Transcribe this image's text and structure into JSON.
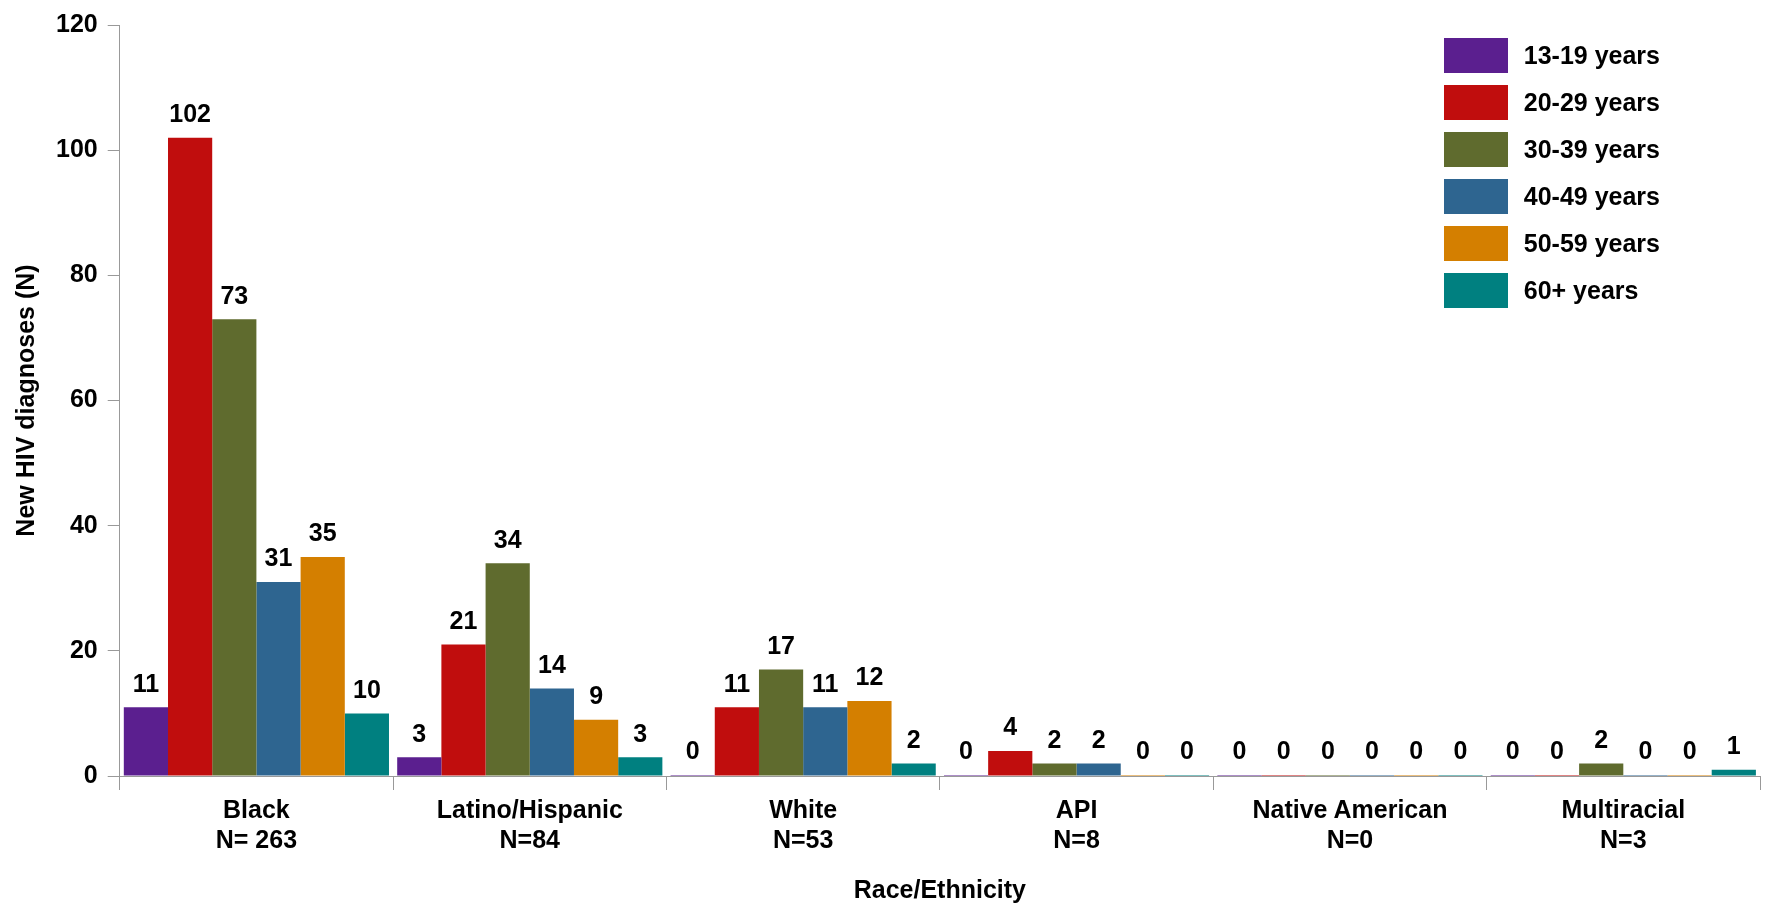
{
  "chart_data": {
    "type": "bar",
    "xlabel": "Race/Ethnicity",
    "ylabel": "New HIV diagnoses (N)",
    "categories": [
      "Black\nN= 263",
      "Latino/Hispanic\nN=84",
      "White\nN=53",
      "API\nN=8",
      "Native American\nN=0",
      "Multiracial\nN=3"
    ],
    "series": [
      {
        "name": "13-19 years",
        "color": "#5b1f8f",
        "values": [
          11,
          3,
          0,
          0,
          0,
          0
        ]
      },
      {
        "name": "20-29 years",
        "color": "#c00d0d",
        "values": [
          102,
          21,
          11,
          4,
          0,
          0
        ]
      },
      {
        "name": "30-39 years",
        "color": "#5f6b2e",
        "values": [
          73,
          34,
          17,
          2,
          0,
          2
        ]
      },
      {
        "name": "40-49 years",
        "color": "#2e6590",
        "values": [
          31,
          14,
          11,
          2,
          0,
          0
        ]
      },
      {
        "name": "50-59 years",
        "color": "#d47f00",
        "values": [
          35,
          9,
          12,
          0,
          0,
          0
        ]
      },
      {
        "name": "60+ years",
        "color": "#008080",
        "values": [
          10,
          3,
          2,
          0,
          0,
          1
        ]
      }
    ],
    "ylim": [
      0,
      120
    ],
    "yticks": [
      0,
      20,
      40,
      60,
      80,
      100,
      120
    ],
    "grid": false,
    "legend": "top right",
    "data_labels": true
  }
}
